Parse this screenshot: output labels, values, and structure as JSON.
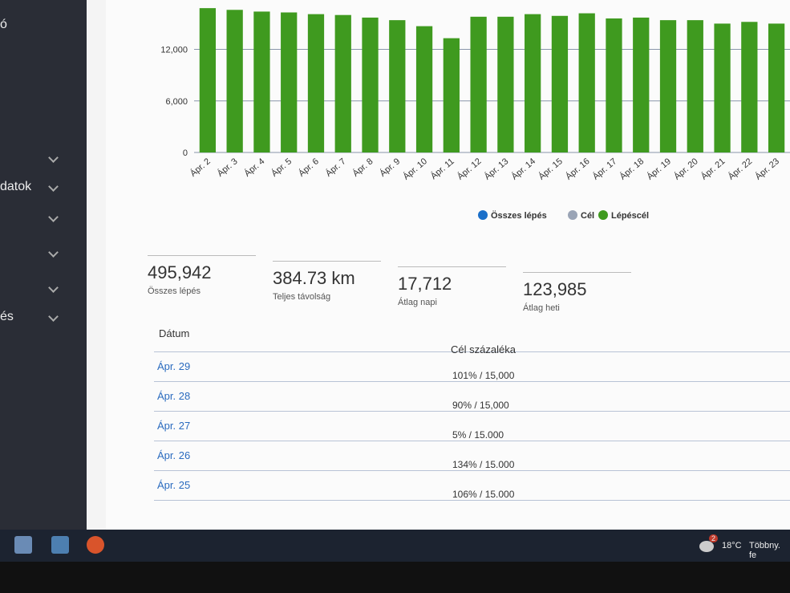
{
  "sidebar": {
    "items": [
      "ó",
      "datok",
      "és"
    ]
  },
  "chart_data": {
    "type": "bar",
    "categories": [
      "Ápr. 2",
      "Ápr. 3",
      "Ápr. 4",
      "Ápr. 5",
      "Ápr. 6",
      "Ápr. 7",
      "Ápr. 8",
      "Ápr. 9",
      "Ápr. 10",
      "Ápr. 11",
      "Ápr. 12",
      "Ápr. 13",
      "Ápr. 14",
      "Ápr. 15",
      "Ápr. 16",
      "Ápr. 17",
      "Ápr. 18",
      "Ápr. 19",
      "Ápr. 20",
      "Ápr. 21",
      "Ápr. 22",
      "Ápr. 23"
    ],
    "values": [
      16800,
      16600,
      16400,
      16300,
      16100,
      16000,
      15700,
      15400,
      14700,
      13300,
      15800,
      15800,
      16100,
      15900,
      16200,
      15600,
      15700,
      15400,
      15400,
      15000,
      15200,
      15000
    ],
    "color": "#3f9a1f",
    "ylim": [
      0,
      17000
    ],
    "yticks": [
      0,
      {
        "value": 6000,
        "label": "6,000"
      },
      {
        "value": 12000,
        "label": "12,000"
      }
    ],
    "grid": true,
    "legend": [
      {
        "name": "Összes lépés",
        "color": "#1a6fc9"
      },
      {
        "name": "Cél",
        "color": "#9aa4b6"
      },
      {
        "name": "Lépéscél",
        "color": "#3f9a1f"
      }
    ]
  },
  "stats": [
    {
      "value": "495,942",
      "label": "Összes lépés"
    },
    {
      "value": "384.73 km",
      "label": "Teljes távolság"
    },
    {
      "value": "17,712",
      "label": "Átlag napi"
    },
    {
      "value": "123,985",
      "label": "Átlag heti"
    }
  ],
  "table": {
    "header": [
      "Dátum",
      "Cél százaléka"
    ],
    "rows": [
      [
        "Ápr. 29",
        "101% / 15,000"
      ],
      [
        "Ápr. 28",
        "90% / 15,000"
      ],
      [
        "Ápr. 27",
        "5% / 15.000"
      ],
      [
        "Ápr. 26",
        "134% / 15.000"
      ],
      [
        "Ápr. 25",
        "106% / 15.000"
      ]
    ]
  },
  "taskbar": {
    "badge": "2",
    "temperature": "18°C",
    "weather": "Többny. fe"
  }
}
